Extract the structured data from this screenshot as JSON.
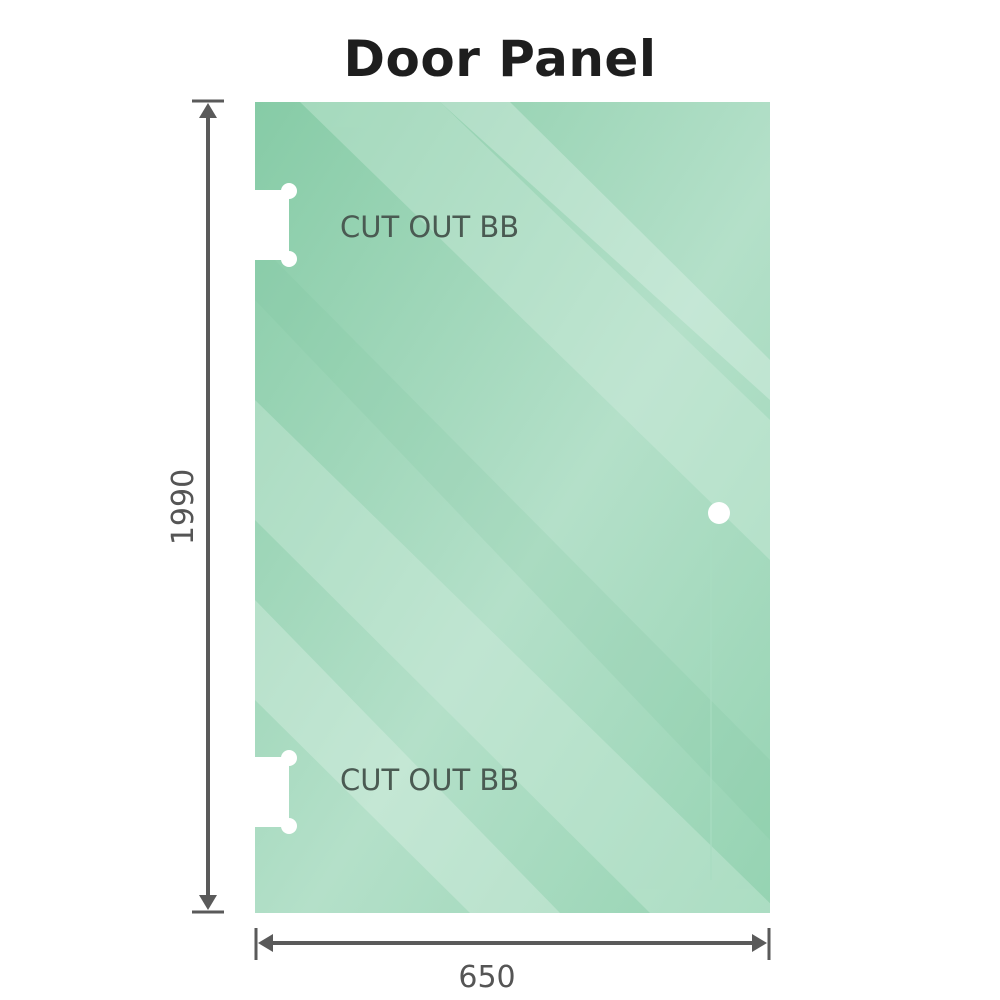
{
  "title": "Door Panel",
  "panel": {
    "height_label": "1990",
    "width_label": "650",
    "cutouts": [
      {
        "label": "CUT OUT BB"
      },
      {
        "label": "CUT OUT BB"
      }
    ]
  },
  "colors": {
    "glass": "#8fd0ae",
    "glass_light": "#b6e2cb",
    "dimension": "#5a5a5a",
    "label_text": "#4a5a52"
  }
}
